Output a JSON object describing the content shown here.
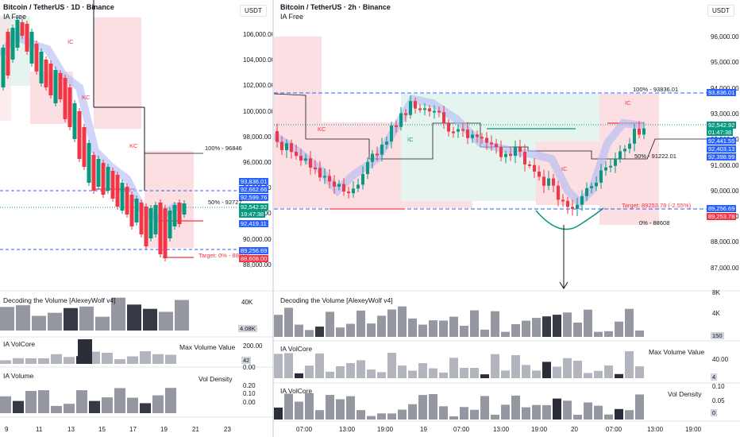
{
  "left": {
    "title": "Bitcoin / TetherUS · 1D · Binance",
    "subtitle": "IA Free",
    "currency": "USDT",
    "price_ticks": [
      "106,000.00",
      "104,000.00",
      "102,000.00",
      "100,000.00",
      "98,000.00",
      "96,000.00",
      "94,000.00",
      "92,000.00",
      "90,000.00",
      "88,000.00"
    ],
    "price_labels": [
      {
        "text": "93,836.01",
        "color": "#2962ff"
      },
      {
        "text": "92,662.66",
        "color": "#2962ff"
      },
      {
        "text": "92,599.76",
        "color": "#2962ff"
      },
      {
        "text": "92,542.92",
        "color": "#089981"
      },
      {
        "text": "19:47:38",
        "color": "#089981"
      },
      {
        "text": "92,419.11",
        "color": "#2962ff"
      },
      {
        "text": "89,256.69",
        "color": "#2962ff"
      },
      {
        "text": "88,608.00",
        "color": "#f23645"
      }
    ],
    "annotations": {
      "fib_100": "100% - 96846",
      "fib_50": "50% - 92727",
      "target": "Target: 0% - 88608",
      "ic1": "IC",
      "kc1": "KC",
      "kc2": "KC"
    },
    "indicators": {
      "dv_title": "Decoding the Volume [AlexeyWolf v4]",
      "dv_ticks": [
        "40K",
        "4.08K"
      ],
      "volcore_title": "IA VolCore",
      "volcore_label": "Max Volume Value",
      "volcore_ticks": [
        "200.00",
        "42",
        "0.00"
      ],
      "volume_title": "IA Volume",
      "volume_label": "Vol Density",
      "volume_ticks": [
        "0.20",
        "0.10",
        "0.00"
      ]
    },
    "x_labels": [
      "9",
      "11",
      "13",
      "15",
      "17",
      "19",
      "21",
      "23"
    ]
  },
  "right": {
    "title": "Bitcoin / TetherUS · 2h · Binance",
    "subtitle": "IA Free",
    "currency": "USDT",
    "price_ticks": [
      "96,000.00",
      "95,000.00",
      "94,000.00",
      "93,000.00",
      "92,000.00",
      "91,000.00",
      "90,000.00",
      "89,000.00",
      "88,000.00",
      "87,000.00"
    ],
    "price_labels": [
      {
        "text": "93,836.01",
        "color": "#2962ff"
      },
      {
        "text": "92,542.92",
        "color": "#089981"
      },
      {
        "text": "01:47:38",
        "color": "#089981"
      },
      {
        "text": "92,441.55",
        "color": "#2962ff"
      },
      {
        "text": "92,403.13",
        "color": "#2962ff"
      },
      {
        "text": "92,398.99",
        "color": "#2962ff"
      },
      {
        "text": "89,256.69",
        "color": "#2962ff"
      },
      {
        "text": "89,253.78",
        "color": "#f23645"
      }
    ],
    "annotations": {
      "fib_100": "100% - 93836.01",
      "fib_50": "50% - 91222.01",
      "fib_0": "0% - 88608",
      "target": "Target: 89253.78 (-2.55%)",
      "kc": "KC",
      "ic_green": "IC",
      "ic_red": "IC",
      "ic_top": "IC"
    },
    "indicators": {
      "dv_title": "Decoding the Volume [AlexeyWolf v4]",
      "dv_ticks": [
        "8K",
        "4K",
        "150"
      ],
      "volcore_title": "IA VolCore",
      "volcore_label": "Max Volume Value",
      "volcore_ticks": [
        "40.00",
        "4"
      ],
      "volume_title": "IA VolCore",
      "volume_label": "Vol Density",
      "volume_ticks": [
        "0.10",
        "0.05",
        "0"
      ]
    },
    "x_labels": [
      "07:00",
      "13:00",
      "19:00",
      "19",
      "07:00",
      "13:00",
      "19:00",
      "20",
      "07:00",
      "13:00",
      "19:00"
    ]
  },
  "colors": {
    "up": "#089981",
    "down": "#f23645",
    "blue": "#2962ff",
    "redzone": "#fbdfe2",
    "greenzone": "#e6f4ef"
  }
}
